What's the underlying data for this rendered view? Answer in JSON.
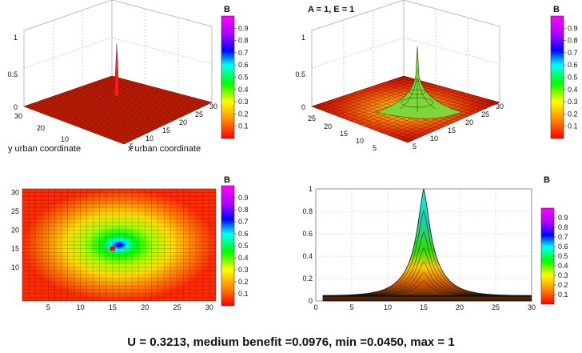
{
  "chart_data": [
    {
      "type": "surface",
      "panel": "surface-3d-single-peak",
      "title": "",
      "xlabel": "x urban coordinate",
      "ylabel": "y urban coordinate",
      "xticks": [
        "5",
        "10",
        "15",
        "20",
        "25",
        "30"
      ],
      "yticks": [
        "10",
        "20",
        "30"
      ],
      "zticks": [
        "0",
        "0.5",
        "1"
      ],
      "zlim": [
        0,
        1
      ],
      "grid": true,
      "peak": {
        "x": 15,
        "y": 15,
        "z": 1
      },
      "colorbar": {
        "title": "B",
        "ticks": [
          "0.1",
          "0.2",
          "0.3",
          "0.4",
          "0.5",
          "0.6",
          "0.7",
          "0.8",
          "0.9"
        ]
      }
    },
    {
      "type": "surface",
      "panel": "surface-3d-spread",
      "title": "A = 1, E = 1",
      "xticks": [
        "5",
        "10",
        "15",
        "20",
        "25",
        "30"
      ],
      "yticks": [
        "5",
        "10",
        "15",
        "20",
        "25"
      ],
      "zticks": [
        "0",
        "0.5",
        "1"
      ],
      "zlim": [
        0,
        1
      ],
      "grid": true,
      "peak": {
        "x": 15,
        "y": 15,
        "z": 1
      },
      "colorbar": {
        "title": "B",
        "ticks": [
          "0.1",
          "0.2",
          "0.3",
          "0.4",
          "0.5",
          "0.6",
          "0.7",
          "0.8",
          "0.9"
        ]
      }
    },
    {
      "type": "heatmap",
      "panel": "top-view",
      "xticks": [
        "5",
        "10",
        "15",
        "20",
        "25",
        "30"
      ],
      "yticks": [
        "10",
        "15",
        "20",
        "25",
        "30"
      ],
      "xlim": [
        1,
        31
      ],
      "ylim": [
        1,
        31
      ],
      "center": {
        "x": 15,
        "y": 15
      },
      "colorbar": {
        "title": "B",
        "ticks": [
          "0.1",
          "0.2",
          "0.3",
          "0.4",
          "0.5",
          "0.6",
          "0.7",
          "0.8",
          "0.9"
        ]
      }
    },
    {
      "type": "area",
      "panel": "side-view",
      "xticks": [
        "0",
        "5",
        "10",
        "15",
        "20",
        "25",
        "30"
      ],
      "yticks": [
        "0",
        "0.2",
        "0.4",
        "0.6",
        "0.8",
        "1"
      ],
      "xlim": [
        0,
        30
      ],
      "ylim": [
        0,
        1
      ],
      "grid": true,
      "peak": {
        "x": 15,
        "y": 1
      },
      "baseline": 0.045,
      "colorbar": {
        "title": "B",
        "ticks": [
          "0.1",
          "0.2",
          "0.3",
          "0.4",
          "0.5",
          "0.6",
          "0.7",
          "0.8",
          "0.9"
        ]
      }
    }
  ],
  "summary": {
    "text": "U = 0.3213, medium benefit =0.0976, min =0.0450, max = 1",
    "U": 0.3213,
    "medium_benefit": 0.0976,
    "min": 0.045,
    "max": 1
  },
  "colors": {
    "low": "#ff0000",
    "mid": "#00ff00",
    "high": "#ff00ff"
  }
}
